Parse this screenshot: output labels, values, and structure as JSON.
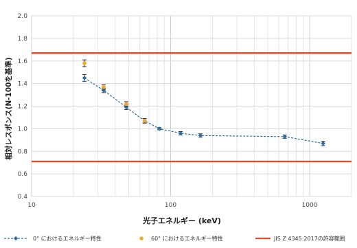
{
  "chart_data": {
    "type": "scatter",
    "title": "",
    "xlabel": "光子エネルギー (keV)",
    "ylabel": "相対レスポンス(N-100を基準)",
    "xscale": "log",
    "xlim": [
      10,
      2000
    ],
    "ylim": [
      0.4,
      2.0
    ],
    "xticks": [
      "10",
      "100",
      "1000"
    ],
    "yticks": [
      "0.4",
      "0.6",
      "0.8",
      "1.0",
      "1.2",
      "1.4",
      "1.6",
      "1.8",
      "2.0"
    ],
    "grid": true,
    "legend_position": "bottom",
    "series": [
      {
        "name": "0° におけるエネルギー特性",
        "type": "line",
        "color": "#2e6da4",
        "x": [
          24,
          33,
          48,
          65,
          83,
          118,
          164,
          662,
          1250
        ],
        "y": [
          1.45,
          1.34,
          1.19,
          1.07,
          1.0,
          0.96,
          0.94,
          0.93,
          0.87
        ],
        "err": [
          0.03,
          0.02,
          0.02,
          0.02,
          0.01,
          0.015,
          0.015,
          0.015,
          0.02
        ]
      },
      {
        "name": "60° におけるエネルギー特性",
        "type": "scatter",
        "color": "#f0a830",
        "x": [
          24,
          33,
          48,
          65
        ],
        "y": [
          1.58,
          1.37,
          1.22,
          1.07
        ],
        "err": [
          0.03,
          0.02,
          0.02,
          0.02
        ]
      },
      {
        "name": "JIS Z 4345:2017の許容範囲",
        "type": "hline",
        "color": "#e05030",
        "y": [
          1.67,
          0.71
        ]
      }
    ]
  }
}
